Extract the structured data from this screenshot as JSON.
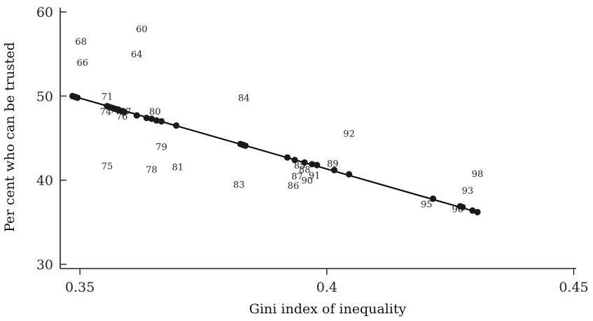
{
  "chart_data": {
    "type": "scatter",
    "title": "",
    "xlabel": "Gini index of inequality",
    "ylabel": "Per cent who can be trusted",
    "xlim": [
      0.346,
      0.4505
    ],
    "ylim": [
      29.5,
      60.5
    ],
    "x_ticks": [
      0.35,
      0.4,
      0.45
    ],
    "x_tick_labels": [
      "0.35",
      "0.4",
      "0.45"
    ],
    "y_ticks": [
      30,
      40,
      50,
      60
    ],
    "y_tick_labels": [
      "30",
      "40",
      "50",
      "60"
    ],
    "grid": false,
    "legend": "none",
    "fit_line": {
      "x": [
        0.3485,
        0.4305
      ],
      "y": [
        50.0,
        36.2
      ]
    },
    "fitted_points": {
      "x": [
        0.3485,
        0.349,
        0.3495,
        0.3555,
        0.356,
        0.3565,
        0.357,
        0.3575,
        0.358,
        0.3585,
        0.359,
        0.3615,
        0.3635,
        0.3645,
        0.3655,
        0.3665,
        0.3695,
        0.3825,
        0.383,
        0.3835,
        0.392,
        0.3935,
        0.3955,
        0.397,
        0.398,
        0.4015,
        0.4045,
        0.4215,
        0.427,
        0.4275,
        0.4295,
        0.4305
      ],
      "y": [
        50.0,
        49.9,
        49.8,
        48.8,
        48.7,
        48.6,
        48.5,
        48.4,
        48.3,
        48.2,
        48.1,
        47.7,
        47.4,
        47.3,
        47.1,
        47.0,
        46.5,
        44.3,
        44.2,
        44.1,
        42.7,
        42.4,
        42.1,
        41.9,
        41.8,
        41.2,
        40.7,
        37.8,
        36.9,
        36.8,
        36.4,
        36.2
      ]
    },
    "year_labels": {
      "text": [
        "60",
        "64",
        "66",
        "68",
        "71",
        "74",
        "73",
        "77",
        "76",
        "75",
        "78",
        "79",
        "80",
        "81",
        "83",
        "84",
        "85",
        "86",
        "87",
        "88",
        "89",
        "90",
        "91",
        "92",
        "93",
        "95",
        "96",
        "98"
      ],
      "x": [
        0.3625,
        0.3615,
        0.3505,
        0.3502,
        0.3555,
        0.3552,
        0.3572,
        0.3592,
        0.3585,
        0.3555,
        0.3645,
        0.3665,
        0.3652,
        0.3698,
        0.3822,
        0.3832,
        0.3945,
        0.3932,
        0.394,
        0.3955,
        0.4012,
        0.396,
        0.3975,
        0.4045,
        0.4285,
        0.4202,
        0.4265,
        0.4305
      ],
      "y": [
        58.0,
        55.0,
        54.0,
        56.5,
        50.0,
        48.2,
        48.4,
        48.2,
        47.6,
        41.7,
        41.3,
        44.0,
        48.2,
        41.6,
        39.5,
        49.8,
        41.8,
        39.4,
        40.5,
        41.3,
        42.0,
        40.0,
        40.6,
        45.6,
        38.8,
        37.2,
        36.6,
        40.8
      ]
    }
  }
}
